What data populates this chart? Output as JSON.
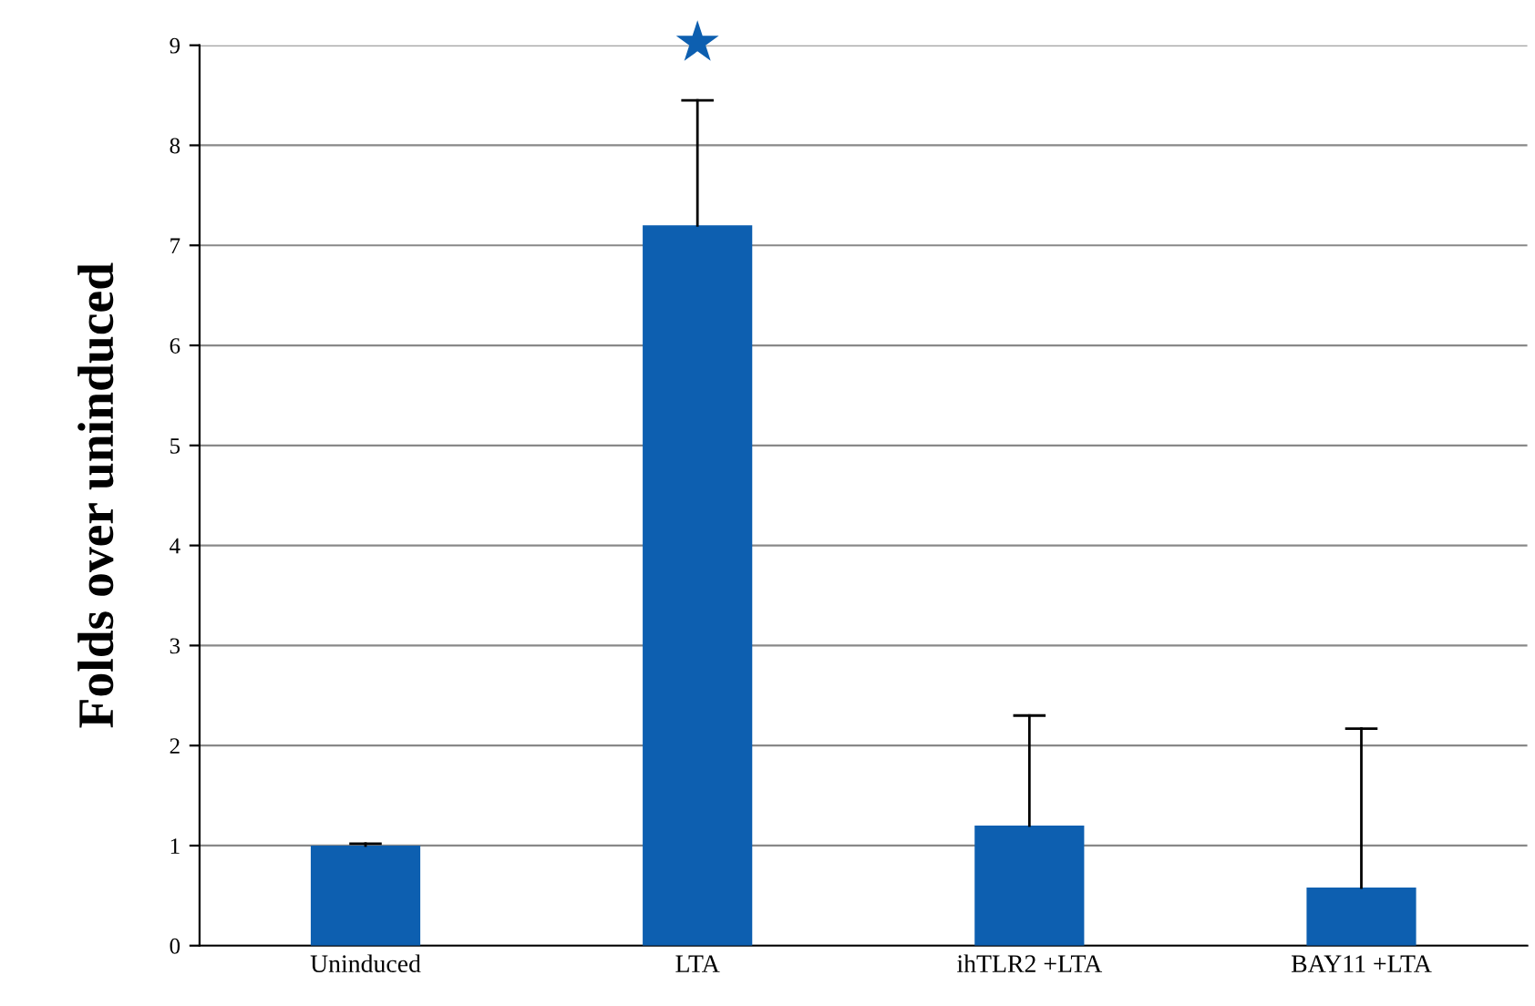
{
  "chart_data": {
    "type": "bar",
    "ylabel": "Folds over uninduced",
    "categories": [
      "Uninduced",
      "LTA",
      "ihTLR2 +LTA",
      "BAY11 +LTA"
    ],
    "values": [
      1.0,
      7.2,
      1.2,
      0.58
    ],
    "errors": [
      [
        1.0,
        1.02
      ],
      [
        7.2,
        8.45
      ],
      [
        1.2,
        2.3
      ],
      [
        0.58,
        2.17
      ]
    ],
    "color": "#0d5fb0",
    "ylim": [
      0,
      9
    ],
    "yticks": [
      0,
      1,
      2,
      3,
      4,
      5,
      6,
      7,
      8,
      9
    ],
    "grid": "y",
    "legend": false,
    "annotations": [
      "★"
    ]
  }
}
